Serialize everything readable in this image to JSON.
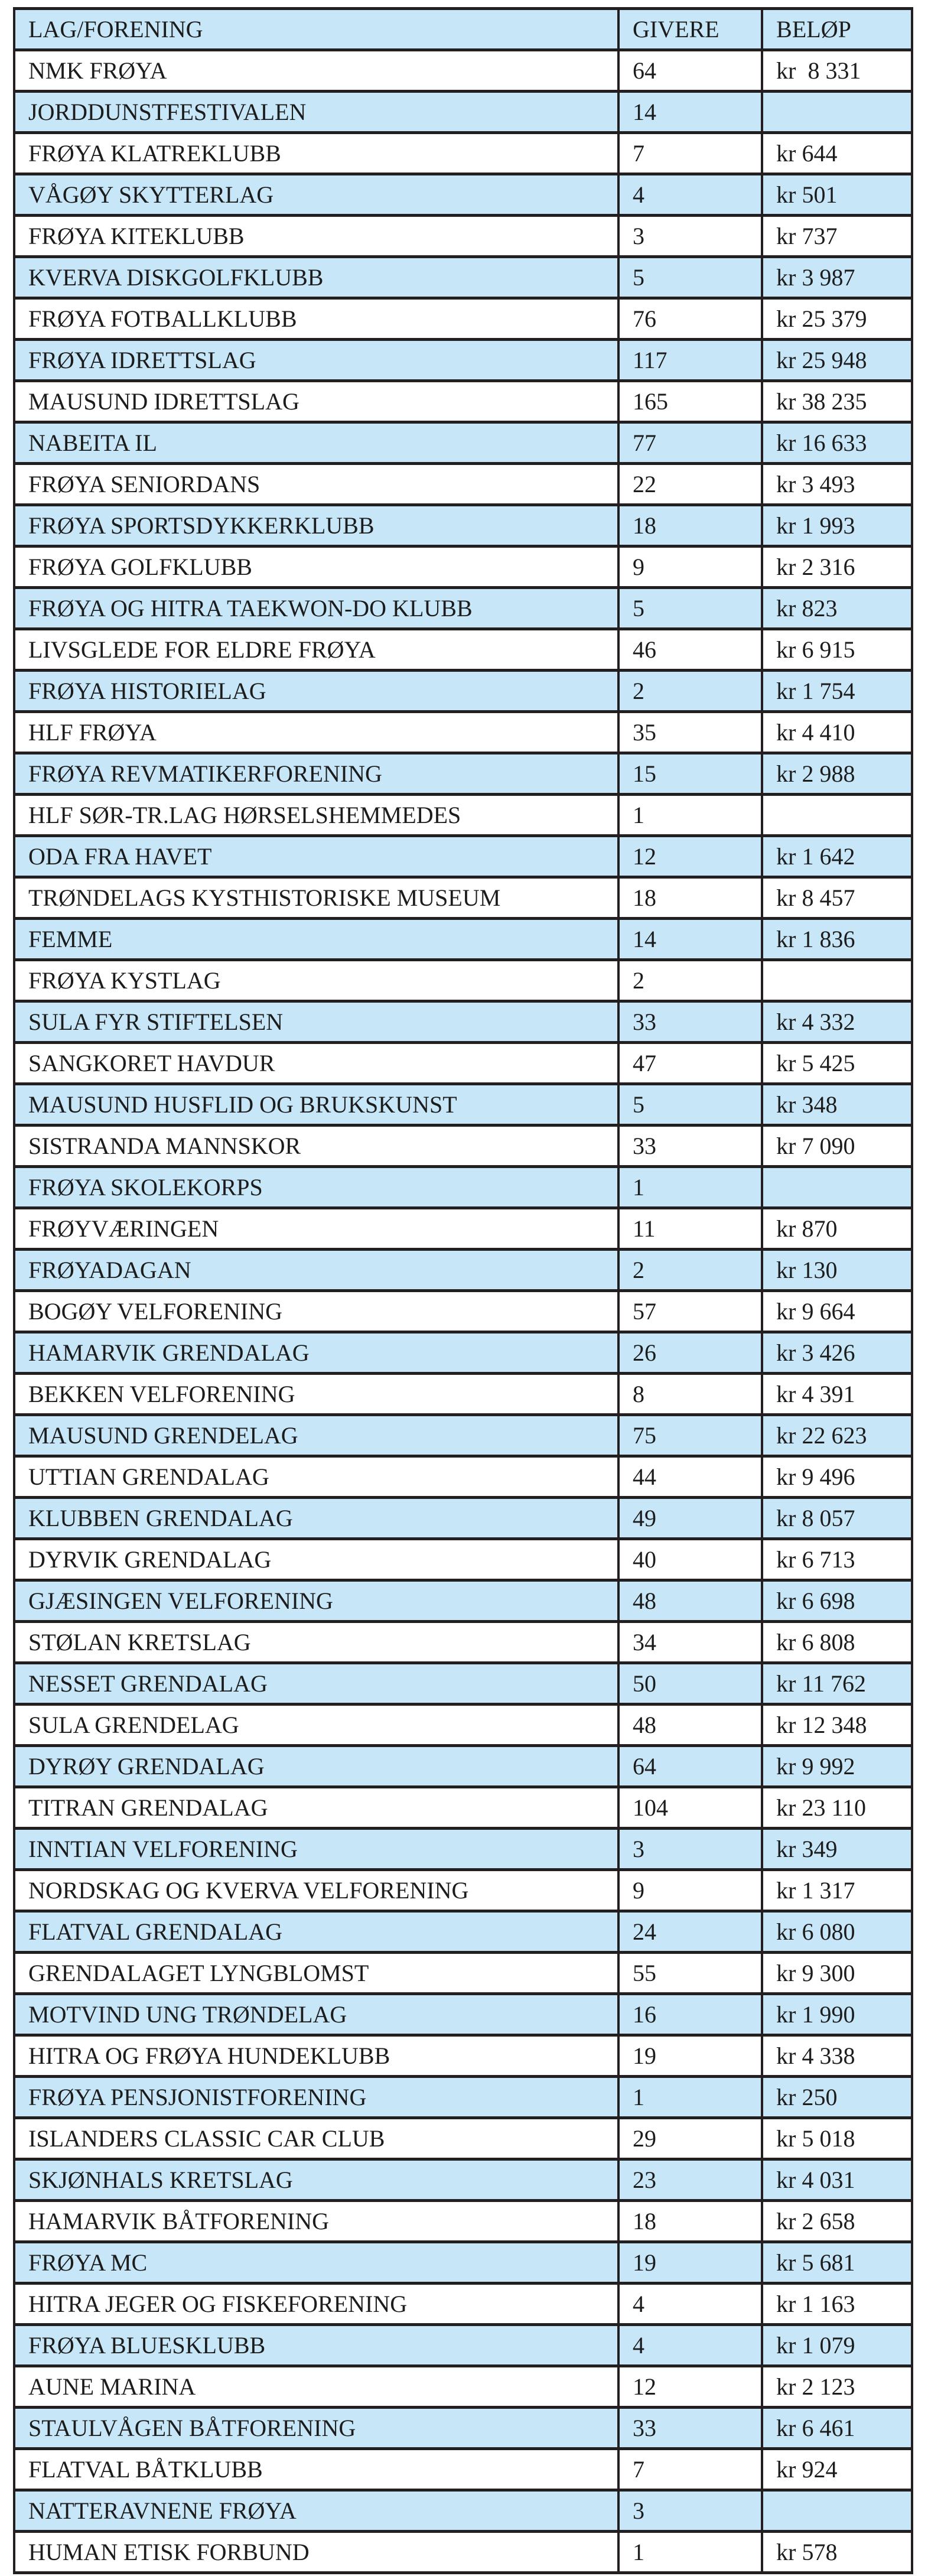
{
  "colors": {
    "row_alt": "#c7e7f9",
    "row_base": "#ffffff",
    "border": "#231f20",
    "text": "#1c1c1c"
  },
  "table": {
    "columns": [
      {
        "label": "LAG/FORENING"
      },
      {
        "label": "GIVERE"
      },
      {
        "label": "BELØP"
      }
    ],
    "rows": [
      {
        "name": "NMK FRØYA",
        "givere": "64",
        "belop": "kr  8 331"
      },
      {
        "name": "JORDDUNSTFESTIVALEN",
        "givere": "14",
        "belop": ""
      },
      {
        "name": "FRØYA KLATREKLUBB",
        "givere": "7",
        "belop": "kr 644"
      },
      {
        "name": "VÅGØY SKYTTERLAG",
        "givere": "4",
        "belop": "kr 501"
      },
      {
        "name": "FRØYA KITEKLUBB",
        "givere": "3",
        "belop": "kr 737"
      },
      {
        "name": "KVERVA DISKGOLFKLUBB",
        "givere": "5",
        "belop": "kr 3 987"
      },
      {
        "name": "FRØYA FOTBALLKLUBB",
        "givere": "76",
        "belop": "kr 25 379"
      },
      {
        "name": "FRØYA IDRETTSLAG",
        "givere": "117",
        "belop": "kr 25 948"
      },
      {
        "name": "MAUSUND IDRETTSLAG",
        "givere": "165",
        "belop": "kr 38 235"
      },
      {
        "name": "NABEITA IL",
        "givere": "77",
        "belop": "kr 16 633"
      },
      {
        "name": "FRØYA SENIORDANS",
        "givere": "22",
        "belop": "kr 3 493"
      },
      {
        "name": "FRØYA SPORTSDYKKERKLUBB",
        "givere": "18",
        "belop": "kr 1 993"
      },
      {
        "name": "FRØYA GOLFKLUBB",
        "givere": "9",
        "belop": "kr 2 316"
      },
      {
        "name": "FRØYA OG HITRA TAEKWON-DO KLUBB",
        "givere": "5",
        "belop": "kr 823"
      },
      {
        "name": "LIVSGLEDE FOR ELDRE FRØYA",
        "givere": "46",
        "belop": "kr 6 915"
      },
      {
        "name": "FRØYA HISTORIELAG",
        "givere": "2",
        "belop": "kr 1 754"
      },
      {
        "name": "HLF FRØYA",
        "givere": "35",
        "belop": "kr 4 410"
      },
      {
        "name": "FRØYA REVMATIKERFORENING",
        "givere": "15",
        "belop": "kr 2 988"
      },
      {
        "name": "HLF SØR-TR.LAG HØRSELSHEMMEDES",
        "givere": "1",
        "belop": ""
      },
      {
        "name": "ODA FRA HAVET",
        "givere": "12",
        "belop": "kr 1 642"
      },
      {
        "name": "TRØNDELAGS KYSTHISTORISKE MUSEUM",
        "givere": "18",
        "belop": "kr 8 457"
      },
      {
        "name": "FEMME",
        "givere": "14",
        "belop": "kr 1 836"
      },
      {
        "name": "FRØYA KYSTLAG",
        "givere": "2",
        "belop": ""
      },
      {
        "name": "SULA FYR STIFTELSEN",
        "givere": "33",
        "belop": "kr 4 332"
      },
      {
        "name": "SANGKORET HAVDUR",
        "givere": "47",
        "belop": "kr 5 425"
      },
      {
        "name": "MAUSUND HUSFLID OG BRUKSKUNST",
        "givere": "5",
        "belop": "kr 348"
      },
      {
        "name": "SISTRANDA MANNSKOR",
        "givere": "33",
        "belop": "kr 7 090"
      },
      {
        "name": "FRØYA SKOLEKORPS",
        "givere": "1",
        "belop": ""
      },
      {
        "name": "FRØYVÆRINGEN",
        "givere": "11",
        "belop": "kr 870"
      },
      {
        "name": "FRØYADAGAN",
        "givere": "2",
        "belop": "kr 130"
      },
      {
        "name": "BOGØY VELFORENING",
        "givere": "57",
        "belop": "kr 9 664"
      },
      {
        "name": "HAMARVIK GRENDALAG",
        "givere": "26",
        "belop": "kr 3 426"
      },
      {
        "name": "BEKKEN VELFORENING",
        "givere": "8",
        "belop": "kr 4 391"
      },
      {
        "name": "MAUSUND GRENDELAG",
        "givere": "75",
        "belop": "kr 22 623"
      },
      {
        "name": "UTTIAN GRENDALAG",
        "givere": "44",
        "belop": "kr 9 496"
      },
      {
        "name": "KLUBBEN GRENDALAG",
        "givere": "49",
        "belop": "kr 8 057"
      },
      {
        "name": "DYRVIK GRENDALAG",
        "givere": "40",
        "belop": "kr 6 713"
      },
      {
        "name": "GJÆSINGEN VELFORENING",
        "givere": "48",
        "belop": "kr 6 698"
      },
      {
        "name": "STØLAN KRETSLAG",
        "givere": "34",
        "belop": "kr 6 808"
      },
      {
        "name": "NESSET GRENDALAG",
        "givere": "50",
        "belop": "kr 11 762"
      },
      {
        "name": "SULA GRENDELAG",
        "givere": "48",
        "belop": "kr 12 348"
      },
      {
        "name": "DYRØY GRENDALAG",
        "givere": "64",
        "belop": "kr 9 992"
      },
      {
        "name": "TITRAN GRENDALAG",
        "givere": "104",
        "belop": "kr 23 110"
      },
      {
        "name": "INNTIAN VELFORENING",
        "givere": "3",
        "belop": "kr 349"
      },
      {
        "name": "NORDSKAG OG KVERVA VELFORENING",
        "givere": "9",
        "belop": "kr 1 317"
      },
      {
        "name": "FLATVAL GRENDALAG",
        "givere": "24",
        "belop": "kr 6 080"
      },
      {
        "name": "GRENDALAGET LYNGBLOMST",
        "givere": "55",
        "belop": "kr 9 300"
      },
      {
        "name": "MOTVIND UNG TRØNDELAG",
        "givere": "16",
        "belop": "kr 1 990"
      },
      {
        "name": "HITRA OG FRØYA HUNDEKLUBB",
        "givere": "19",
        "belop": "kr 4 338"
      },
      {
        "name": "FRØYA PENSJONISTFORENING",
        "givere": "1",
        "belop": "kr 250"
      },
      {
        "name": "ISLANDERS CLASSIC CAR CLUB",
        "givere": "29",
        "belop": "kr 5 018"
      },
      {
        "name": "SKJØNHALS KRETSLAG",
        "givere": "23",
        "belop": "kr 4 031"
      },
      {
        "name": "HAMARVIK BÅTFORENING",
        "givere": "18",
        "belop": "kr 2 658"
      },
      {
        "name": "FRØYA MC",
        "givere": "19",
        "belop": "kr 5 681"
      },
      {
        "name": "HITRA JEGER OG FISKEFORENING",
        "givere": "4",
        "belop": "kr 1 163"
      },
      {
        "name": "FRØYA BLUESKLUBB",
        "givere": "4",
        "belop": "kr 1 079"
      },
      {
        "name": "AUNE MARINA",
        "givere": "12",
        "belop": "kr 2 123"
      },
      {
        "name": "STAULVÅGEN BÅTFORENING",
        "givere": "33",
        "belop": "kr 6 461"
      },
      {
        "name": "FLATVAL BÅTKLUBB",
        "givere": "7",
        "belop": "kr 924"
      },
      {
        "name": "NATTERAVNENE FRØYA",
        "givere": "3",
        "belop": ""
      },
      {
        "name": "HUMAN ETISK FORBUND",
        "givere": "1",
        "belop": "kr 578"
      }
    ]
  }
}
